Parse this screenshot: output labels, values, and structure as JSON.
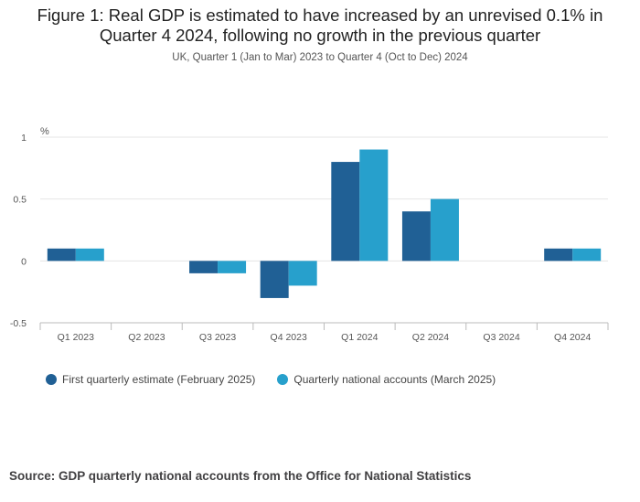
{
  "header": {
    "title_line1": "Figure 1: Real GDP is estimated to have increased by an unrevised 0.1% in",
    "title_line2": "Quarter 4 2024, following no growth in the previous quarter",
    "subtitle": "UK, Quarter 1 (Jan to Mar) 2023 to Quarter 4 (Oct to Dec) 2024"
  },
  "source": "Source: GDP quarterly national accounts from the Office for National Statistics",
  "chart_data": {
    "type": "bar",
    "ylabel": "%",
    "ylim": [
      -0.5,
      1
    ],
    "yticks": [
      "1",
      "0.5",
      "0",
      "-0.5"
    ],
    "grid": true,
    "legend_position": "bottom-left",
    "categories": [
      "Q1 2023",
      "Q2 2023",
      "Q3 2023",
      "Q4 2023",
      "Q1 2024",
      "Q2 2024",
      "Q3 2024",
      "Q4 2024"
    ],
    "series": [
      {
        "name": "First quarterly estimate (February 2025)",
        "color": "#206095",
        "values": [
          0.1,
          0.0,
          -0.1,
          -0.3,
          0.8,
          0.4,
          0.0,
          0.1
        ]
      },
      {
        "name": "Quarterly national accounts (March 2025)",
        "color": "#27a0cc",
        "values": [
          0.1,
          0.0,
          -0.1,
          -0.2,
          0.9,
          0.5,
          0.0,
          0.1
        ]
      }
    ]
  }
}
